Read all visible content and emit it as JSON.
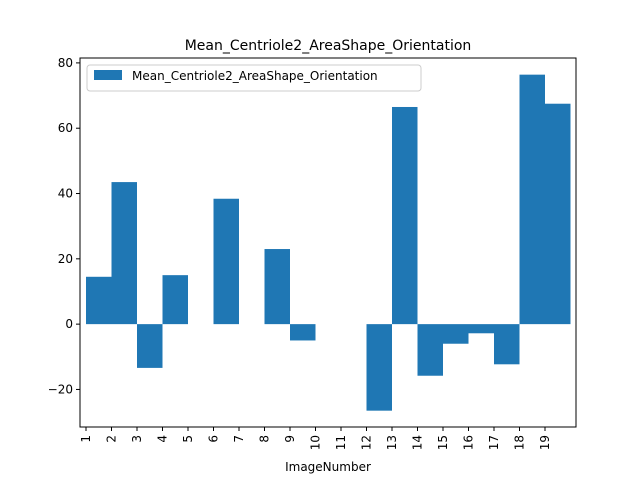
{
  "chart_data": {
    "type": "bar",
    "title": "Mean_Centriole2_AreaShape_Orientation",
    "xlabel": "ImageNumber",
    "ylabel": "",
    "categories": [
      "1",
      "2",
      "3",
      "4",
      "5",
      "6",
      "7",
      "8",
      "9",
      "10",
      "11",
      "12",
      "13",
      "14",
      "15",
      "16",
      "17",
      "18",
      "19"
    ],
    "series": [
      {
        "name": "Mean_Centriole2_AreaShape_Orientation",
        "color": "#1f77b4",
        "values": [
          14.5,
          43.5,
          -13.4,
          15.0,
          0,
          38.4,
          0,
          23.0,
          -5.0,
          0,
          0,
          -26.5,
          66.5,
          -15.8,
          -6.0,
          -2.8,
          -12.3,
          76.4,
          67.5
        ]
      }
    ],
    "ylim": [
      -31.5,
      81.5
    ],
    "yticks": [
      -20,
      0,
      20,
      40,
      60,
      80
    ],
    "legend": {
      "location": "upper left"
    },
    "grid": false
  }
}
